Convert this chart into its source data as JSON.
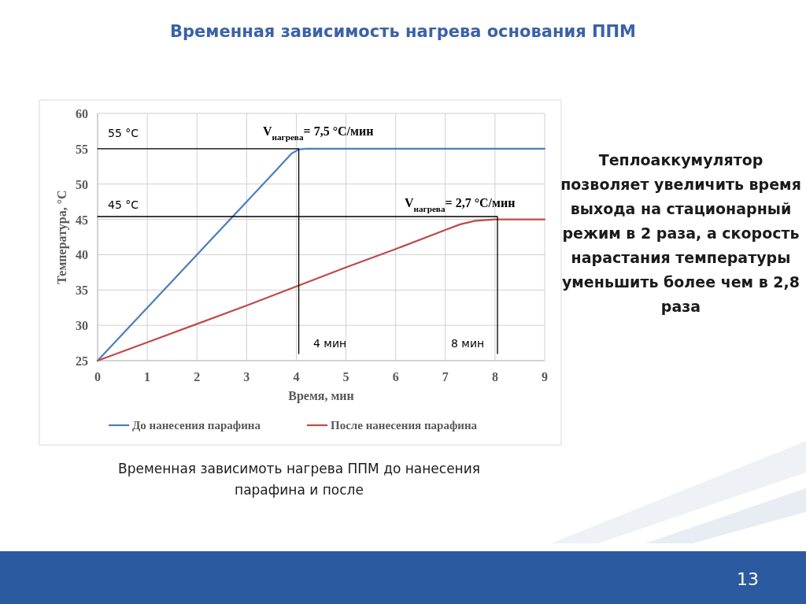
{
  "chart_data": {
    "type": "line",
    "title": "Временная зависимость нагрева основания ППМ",
    "xlabel": "Время, мин",
    "ylabel": "Температура, °C",
    "xlim": [
      0,
      9
    ],
    "xticks": [
      0,
      1,
      2,
      3,
      4,
      5,
      6,
      7,
      8,
      9
    ],
    "ylim": [
      25,
      60
    ],
    "yticks": [
      25,
      30,
      35,
      40,
      45,
      50,
      55,
      60
    ],
    "grid": true,
    "legend": "bottom",
    "line_style": "solid",
    "marker": "none",
    "series": [
      {
        "name": "До нанесения парафина",
        "color": "#4a7ebb",
        "x": [
          0,
          1,
          2,
          3,
          3.6,
          3.9,
          4.05,
          4.2,
          4.5,
          9
        ],
        "values": [
          25,
          32.5,
          40,
          47.5,
          52,
          54.3,
          54.9,
          55,
          55,
          55
        ]
      },
      {
        "name": "После нанесения парафина",
        "color": "#be4b48",
        "x": [
          0,
          1,
          2,
          3,
          4,
          5,
          6,
          7,
          7.3,
          7.6,
          8,
          9
        ],
        "values": [
          25,
          27.6,
          30.2,
          32.8,
          35.5,
          38.2,
          40.8,
          43.5,
          44.3,
          44.8,
          45,
          45
        ]
      },
      {
        "type": "line",
        "color": "#000000",
        "x": [
          0,
          4.05,
          4.05
        ],
        "values": [
          55,
          55,
          26
        ]
      },
      {
        "type": "line",
        "color": "#000000",
        "x": [
          0,
          8.05,
          8.05
        ],
        "values": [
          45.4,
          45.4,
          26
        ]
      }
    ],
    "annotations": [
      "Теплоаккумулятор позволяет увеличить время выхода на стационарный режим в 2 раза, а скорость нарастания температуры уменьшить более чем в 2,8 раза",
      "Временная зависимоть нагрева ППМ до нанесения парафина и после",
      "13",
      "55 °C",
      "45 °C",
      "V$_{нагрева}$= 7,5 °C/мин",
      "V$_{нагрева}$= 2,7 °C/мин",
      "4 мин",
      "8 мин"
    ]
  }
}
